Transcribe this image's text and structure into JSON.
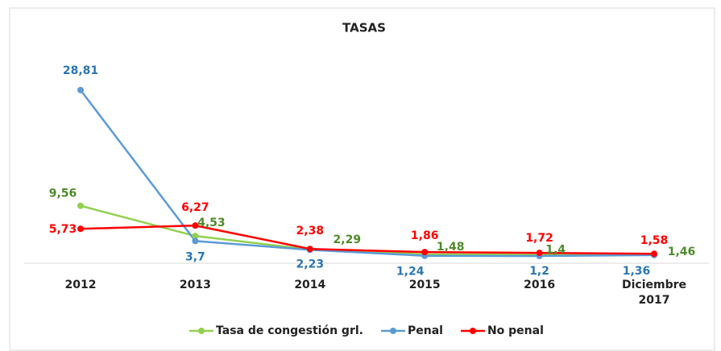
{
  "chart_data": {
    "type": "line",
    "title": "TASAS",
    "categories": [
      "2012",
      "2013",
      "2014",
      "2015",
      "2016",
      "Diciembre 2017"
    ],
    "ylim": [
      0,
      30
    ],
    "legend": "bottom",
    "series": [
      {
        "name": "Tasa de congestión grl.",
        "color": "#92d050",
        "label_color": "#4e8a2a",
        "values": [
          9.56,
          4.53,
          2.29,
          1.48,
          1.4,
          1.46
        ],
        "value_labels": [
          "9,56",
          "4,53",
          "2,29",
          "1,48",
          "1,4",
          "1,46"
        ]
      },
      {
        "name": "Penal",
        "color": "#5b9bd5",
        "label_color": "#2e75b6",
        "values": [
          28.81,
          3.7,
          2.23,
          1.24,
          1.2,
          1.36
        ],
        "value_labels": [
          "28,81",
          "3,7",
          "2,23",
          "1,24",
          "1,2",
          "1,36"
        ]
      },
      {
        "name": "No penal",
        "color": "#ff0000",
        "label_color": "#ff0000",
        "values": [
          5.73,
          6.27,
          2.38,
          1.86,
          1.72,
          1.58
        ],
        "value_labels": [
          "5,73",
          "6,27",
          "2,38",
          "1,86",
          "1,72",
          "1,58"
        ]
      }
    ]
  }
}
